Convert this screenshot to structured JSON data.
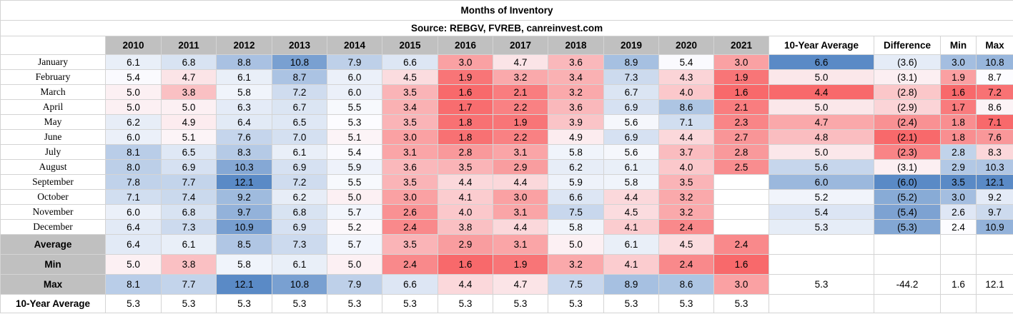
{
  "title": "Months of Inventory",
  "source": "Source: REBGV, FVREB, canreinvest.com",
  "headers": [
    "2010",
    "2011",
    "2012",
    "2013",
    "2014",
    "2015",
    "2016",
    "2017",
    "2018",
    "2019",
    "2020",
    "2021",
    "10-Year Average",
    "Difference",
    "Min",
    "Max"
  ],
  "months": [
    {
      "label": "January",
      "values": [
        "6.1",
        "6.8",
        "8.8",
        "10.8",
        "7.9",
        "6.6",
        "3.0",
        "4.7",
        "3.6",
        "8.9",
        "5.4",
        "3.0"
      ],
      "avg": "6.6",
      "diff": "(3.6)",
      "min": "3.0",
      "max": "10.8"
    },
    {
      "label": "February",
      "values": [
        "5.4",
        "4.7",
        "6.1",
        "8.7",
        "6.0",
        "4.5",
        "1.9",
        "3.2",
        "3.4",
        "7.3",
        "4.3",
        "1.9"
      ],
      "avg": "5.0",
      "diff": "(3.1)",
      "min": "1.9",
      "max": "8.7"
    },
    {
      "label": "March",
      "values": [
        "5.0",
        "3.8",
        "5.8",
        "7.2",
        "6.0",
        "3.5",
        "1.6",
        "2.1",
        "3.2",
        "6.7",
        "4.0",
        "1.6"
      ],
      "avg": "4.4",
      "diff": "(2.8)",
      "min": "1.6",
      "max": "7.2"
    },
    {
      "label": "April",
      "values": [
        "5.0",
        "5.0",
        "6.3",
        "6.7",
        "5.5",
        "3.4",
        "1.7",
        "2.2",
        "3.6",
        "6.9",
        "8.6",
        "2.1"
      ],
      "avg": "5.0",
      "diff": "(2.9)",
      "min": "1.7",
      "max": "8.6"
    },
    {
      "label": "May",
      "values": [
        "6.2",
        "4.9",
        "6.4",
        "6.5",
        "5.3",
        "3.5",
        "1.8",
        "1.9",
        "3.9",
        "5.6",
        "7.1",
        "2.3"
      ],
      "avg": "4.7",
      "diff": "(2.4)",
      "min": "1.8",
      "max": "7.1"
    },
    {
      "label": "June",
      "values": [
        "6.0",
        "5.1",
        "7.6",
        "7.0",
        "5.1",
        "3.0",
        "1.8",
        "2.2",
        "4.9",
        "6.9",
        "4.4",
        "2.7"
      ],
      "avg": "4.8",
      "diff": "(2.1)",
      "min": "1.8",
      "max": "7.6"
    },
    {
      "label": "July",
      "values": [
        "8.1",
        "6.5",
        "8.3",
        "6.1",
        "5.4",
        "3.1",
        "2.8",
        "3.1",
        "5.8",
        "5.6",
        "3.7",
        "2.8"
      ],
      "avg": "5.0",
      "diff": "(2.3)",
      "min": "2.8",
      "max": "8.3"
    },
    {
      "label": "August",
      "values": [
        "8.0",
        "6.9",
        "10.3",
        "6.9",
        "5.9",
        "3.6",
        "3.5",
        "2.9",
        "6.2",
        "6.1",
        "4.0",
        "2.5"
      ],
      "avg": "5.6",
      "diff": "(3.1)",
      "min": "2.9",
      "max": "10.3"
    },
    {
      "label": "September",
      "values": [
        "7.8",
        "7.7",
        "12.1",
        "7.2",
        "5.5",
        "3.5",
        "4.4",
        "4.4",
        "5.9",
        "5.8",
        "3.5",
        ""
      ],
      "avg": "6.0",
      "diff": "(6.0)",
      "min": "3.5",
      "max": "12.1"
    },
    {
      "label": "October",
      "values": [
        "7.1",
        "7.4",
        "9.2",
        "6.2",
        "5.0",
        "3.0",
        "4.1",
        "3.0",
        "6.6",
        "4.4",
        "3.2",
        ""
      ],
      "avg": "5.2",
      "diff": "(5.2)",
      "min": "3.0",
      "max": "9.2"
    },
    {
      "label": "November",
      "values": [
        "6.0",
        "6.8",
        "9.7",
        "6.8",
        "5.7",
        "2.6",
        "4.0",
        "3.1",
        "7.5",
        "4.5",
        "3.2",
        ""
      ],
      "avg": "5.4",
      "diff": "(5.4)",
      "min": "2.6",
      "max": "9.7"
    },
    {
      "label": "December",
      "values": [
        "6.4",
        "7.3",
        "10.9",
        "6.9",
        "5.2",
        "2.4",
        "3.8",
        "4.4",
        "5.8",
        "4.1",
        "2.4",
        ""
      ],
      "avg": "5.3",
      "diff": "(5.3)",
      "min": "2.4",
      "max": "10.9"
    }
  ],
  "summary": [
    {
      "label": "Average",
      "values": [
        "6.4",
        "6.1",
        "8.5",
        "7.3",
        "5.7",
        "3.5",
        "2.9",
        "3.1",
        "5.0",
        "6.1",
        "4.5",
        "2.4"
      ],
      "extra": [
        "",
        "",
        "",
        ""
      ]
    },
    {
      "label": "Min",
      "values": [
        "5.0",
        "3.8",
        "5.8",
        "6.1",
        "5.0",
        "2.4",
        "1.6",
        "1.9",
        "3.2",
        "4.1",
        "2.4",
        "1.6"
      ],
      "extra": [
        "",
        "",
        "",
        ""
      ]
    },
    {
      "label": "Max",
      "values": [
        "8.1",
        "7.7",
        "12.1",
        "10.8",
        "7.9",
        "6.6",
        "4.4",
        "4.7",
        "7.5",
        "8.9",
        "8.6",
        "3.0"
      ],
      "extra": [
        "5.3",
        "-44.2",
        "1.6",
        "12.1"
      ]
    }
  ],
  "ten_year_row": {
    "label": "10-Year Average",
    "values": [
      "5.3",
      "5.3",
      "5.3",
      "5.3",
      "5.3",
      "5.3",
      "5.3",
      "5.3",
      "5.3",
      "5.3",
      "5.3",
      "5.3"
    ]
  },
  "colors": {
    "blue": "#5a8ac6",
    "white": "#fcfcff",
    "red": "#f8696b",
    "header_grey": "#c0c0c0"
  }
}
